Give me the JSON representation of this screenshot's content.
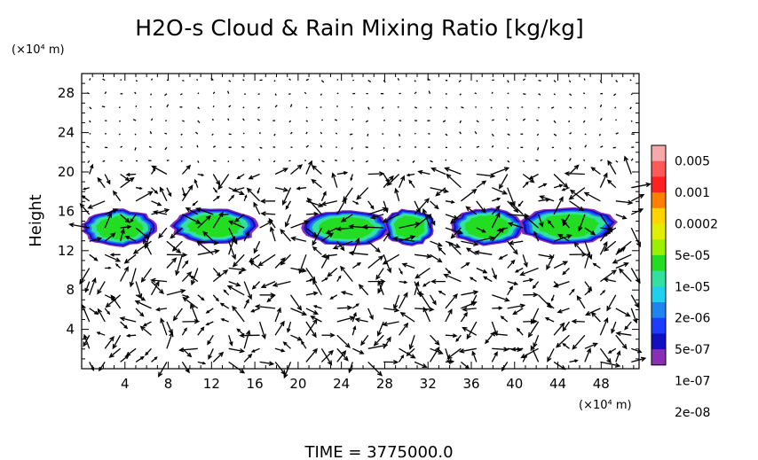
{
  "chart_data": {
    "type": "heatmap",
    "title": "H2O-s Cloud & Rain Mixing Ratio [kg/kg]",
    "xlabel": "",
    "ylabel": "Height",
    "x_unit": "(×10⁴ m)",
    "y_unit": "(×10⁴ m)",
    "xlim": [
      0,
      51.5
    ],
    "ylim": [
      0,
      30
    ],
    "x_ticks": [
      4,
      8,
      12,
      16,
      20,
      24,
      28,
      32,
      36,
      40,
      44,
      48
    ],
    "y_ticks": [
      4,
      8,
      12,
      16,
      20,
      24,
      28
    ],
    "footer": "TIME = 3775000.0",
    "colorbar": {
      "labels": [
        "0.005",
        "0.001",
        "0.0002",
        "5e-05",
        "1e-05",
        "2e-06",
        "5e-07",
        "1e-07",
        "2e-08"
      ],
      "colors": [
        "#f7a8a8",
        "#ff5a5a",
        "#ff2020",
        "#ff7f00",
        "#ffd400",
        "#e2ee00",
        "#9af000",
        "#22dd22",
        "#33e0a0",
        "#20cfee",
        "#1c86ee",
        "#1c3cff",
        "#1010c0",
        "#8a2fb5"
      ]
    },
    "cloud_layer": {
      "z_range": [
        12.5,
        16.5
      ],
      "clouds": [
        {
          "x_center": 3.5,
          "width": 7.5,
          "z_center": 14.3
        },
        {
          "x_center": 12.3,
          "width": 8.5,
          "z_center": 14.5
        },
        {
          "x_center": 24.5,
          "width": 8.5,
          "z_center": 14.3
        },
        {
          "x_center": 30.3,
          "width": 5.0,
          "z_center": 14.4
        },
        {
          "x_center": 37.5,
          "width": 7.5,
          "z_center": 14.4
        },
        {
          "x_center": 45.0,
          "width": 9.5,
          "z_center": 14.5
        }
      ],
      "intensity_levels": [
        "2e-08",
        "1e-07",
        "5e-07",
        "2e-06",
        "1e-05"
      ]
    },
    "wind_vectors": "arrow field shown over entire domain"
  }
}
